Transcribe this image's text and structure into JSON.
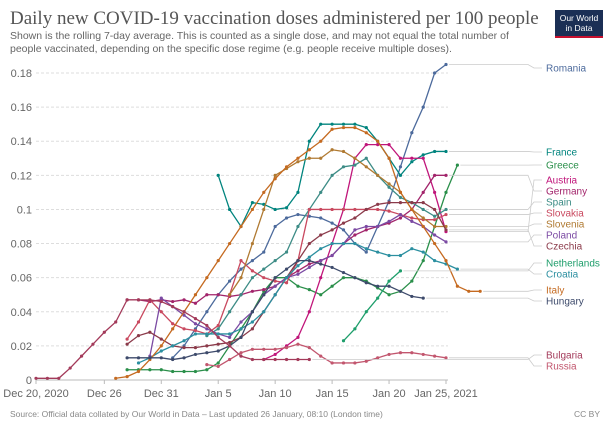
{
  "header": {
    "title": "Daily new COVID-19 vaccination doses administered per 100 people",
    "subtitle": "Shown is the rolling 7-day average. This is counted as a single dose, and may not equal the total number of people vaccinated, depending on the specific dose regime (e.g. people receive multiple doses).",
    "logo_line1": "Our World",
    "logo_line2": "in Data"
  },
  "footer": {
    "source": "Source: Official data collated by Our World in Data – Last updated 26 January, 08:10 (London time)",
    "license": "CC BY"
  },
  "chart_data": {
    "type": "line",
    "title": "Daily new COVID-19 vaccination doses administered per 100 people",
    "xlabel": "",
    "ylabel": "",
    "x_start": "2020-12-20",
    "x_end": "2021-01-25",
    "xticks": [
      {
        "day": 0,
        "label": "Dec 20, 2020"
      },
      {
        "day": 6,
        "label": "Dec 26"
      },
      {
        "day": 11,
        "label": "Dec 31"
      },
      {
        "day": 16,
        "label": "Jan 5"
      },
      {
        "day": 21,
        "label": "Jan 10"
      },
      {
        "day": 26,
        "label": "Jan 15"
      },
      {
        "day": 31,
        "label": "Jan 20"
      },
      {
        "day": 36,
        "label": "Jan 25, 2021"
      }
    ],
    "ylim": [
      0,
      0.18
    ],
    "yticks": [
      "0",
      "0.02",
      "0.04",
      "0.06",
      "0.08",
      "0.1",
      "0.12",
      "0.14",
      "0.16",
      "0.18"
    ],
    "grid": true,
    "legend": "right (line-end labels)",
    "series": [
      {
        "name": "Romania",
        "color": "#4c6a9c",
        "start_day": 12,
        "values": [
          0.013,
          0.02,
          0.03,
          0.04,
          0.05,
          0.058,
          0.065,
          0.07,
          0.075,
          0.09,
          0.095,
          0.097,
          0.096,
          0.095,
          0.092,
          0.088,
          0.08,
          0.075,
          0.09,
          0.105,
          0.125,
          0.145,
          0.16,
          0.18,
          0.185
        ]
      },
      {
        "name": "France",
        "color": "#00847e",
        "start_day": 16,
        "values": [
          0.12,
          0.1,
          0.09,
          0.104,
          0.103,
          0.1,
          0.101,
          0.11,
          0.14,
          0.15,
          0.15,
          0.15,
          0.15,
          0.148,
          0.14,
          0.13,
          0.12,
          0.128,
          0.132,
          0.134,
          0.134
        ]
      },
      {
        "name": "Greece",
        "color": "#2a8f4a",
        "start_day": 8,
        "values": [
          0.006,
          0.006,
          0.006,
          0.006,
          0.005,
          0.005,
          0.005,
          0.006,
          0.01,
          0.02,
          0.03,
          0.04,
          0.052,
          0.06,
          0.06,
          0.055,
          0.053,
          0.05,
          0.055,
          0.06,
          0.06,
          0.058,
          0.054,
          0.05,
          0.052,
          0.058,
          0.07,
          0.09,
          0.11,
          0.126
        ]
      },
      {
        "name": "Austria",
        "color": "#c0157a",
        "start_day": 20,
        "values": [
          0.012,
          0.015,
          0.02,
          0.025,
          0.04,
          0.06,
          0.08,
          0.1,
          0.13,
          0.138,
          0.138,
          0.138,
          0.13,
          0.13,
          0.13,
          0.11,
          0.087
        ]
      },
      {
        "name": "Germany",
        "color": "#a2246b",
        "start_day": 8,
        "values": [
          0.047,
          0.047,
          0.046,
          0.047,
          0.046,
          0.047,
          0.045,
          0.05,
          0.05,
          0.049,
          0.05,
          0.052,
          0.053,
          0.055,
          0.06,
          0.064,
          0.068,
          0.07,
          0.073,
          0.08,
          0.085,
          0.088,
          0.09,
          0.092,
          0.095,
          0.1,
          0.11,
          0.12,
          0.12
        ]
      },
      {
        "name": "Spain",
        "color": "#3d8c86",
        "start_day": 15,
        "values": [
          0.026,
          0.03,
          0.04,
          0.05,
          0.06,
          0.065,
          0.07,
          0.075,
          0.09,
          0.1,
          0.11,
          0.12,
          0.125,
          0.126,
          0.13,
          0.12,
          0.113,
          0.107,
          0.104,
          0.1,
          0.096,
          0.1
        ]
      },
      {
        "name": "Slovakia",
        "color": "#c9495f",
        "start_day": 8,
        "values": [
          0.024,
          0.034,
          0.047,
          0.04,
          0.033,
          0.03,
          0.029,
          0.027,
          0.032,
          0.05,
          0.07,
          0.064,
          0.06,
          0.058,
          0.057,
          0.07,
          0.1,
          0.1,
          0.1,
          0.1,
          0.1,
          0.1,
          0.1,
          0.099,
          0.097,
          0.095,
          0.094,
          0.094,
          0.097
        ]
      },
      {
        "name": "Slovenia",
        "color": "#b07a32",
        "start_day": 17,
        "values": [
          0.05,
          0.06,
          0.08,
          0.1,
          0.12,
          0.124,
          0.128,
          0.13,
          0.13,
          0.135,
          0.134,
          0.13,
          0.125,
          0.12,
          0.115,
          0.11,
          0.1,
          0.095,
          0.09,
          0.09
        ]
      },
      {
        "name": "Poland",
        "color": "#7b4aa3",
        "start_day": 10,
        "values": [
          0.014,
          0.048,
          0.043,
          0.038,
          0.033,
          0.03,
          0.027,
          0.025,
          0.034,
          0.04,
          0.05,
          0.055,
          0.06,
          0.062,
          0.066,
          0.07,
          0.073,
          0.08,
          0.088,
          0.09,
          0.09,
          0.093,
          0.097,
          0.093,
          0.09,
          0.085,
          0.081
        ]
      },
      {
        "name": "Czechia",
        "color": "#8b3a4a",
        "start_day": 8,
        "values": [
          0.021,
          0.026,
          0.028,
          0.024,
          0.02,
          0.019,
          0.019,
          0.02,
          0.021,
          0.022,
          0.025,
          0.03,
          0.04,
          0.05,
          0.06,
          0.07,
          0.08,
          0.085,
          0.088,
          0.092,
          0.095,
          0.1,
          0.103,
          0.104,
          0.104,
          0.104,
          0.104,
          0.1,
          0.088
        ]
      },
      {
        "name": "Netherlands",
        "color": "#1e9e6b",
        "start_day": 27,
        "values": [
          0.023,
          0.03,
          0.04,
          0.048,
          0.058,
          0.064
        ]
      },
      {
        "name": "Croatia",
        "color": "#2b8fa0",
        "start_day": 9,
        "values": [
          0.01,
          0.013,
          0.017,
          0.02,
          0.023,
          0.027,
          0.027,
          0.027,
          0.027,
          0.03,
          0.034,
          0.04,
          0.05,
          0.06,
          0.067,
          0.072,
          0.077,
          0.08,
          0.08,
          0.08,
          0.077,
          0.075,
          0.073,
          0.073,
          0.077,
          0.075,
          0.07,
          0.068,
          0.065
        ]
      },
      {
        "name": "Italy",
        "color": "#c56a20",
        "start_day": 7,
        "values": [
          0.001,
          0.002,
          0.005,
          0.012,
          0.02,
          0.03,
          0.04,
          0.05,
          0.06,
          0.07,
          0.08,
          0.09,
          0.1,
          0.11,
          0.118,
          0.125,
          0.13,
          0.135,
          0.14,
          0.147,
          0.148,
          0.148,
          0.145,
          0.14,
          0.13,
          0.11,
          0.1,
          0.09,
          0.08,
          0.07,
          0.055,
          0.052,
          0.052
        ]
      },
      {
        "name": "Hungary",
        "color": "#3d4a6b",
        "start_day": 8,
        "values": [
          0.013,
          0.013,
          0.013,
          0.013,
          0.012,
          0.013,
          0.015,
          0.016,
          0.017,
          0.02,
          0.025,
          0.04,
          0.05,
          0.06,
          0.065,
          0.07,
          0.07,
          0.068,
          0.066,
          0.063,
          0.06,
          0.057,
          0.055,
          0.055,
          0.052,
          0.049,
          0.048
        ]
      },
      {
        "name": "Bulgaria",
        "color": "#a33a5a",
        "start_day": 0,
        "values": [
          0.001,
          0.001,
          0.001,
          0.007,
          0.014,
          0.021,
          0.028,
          0.034,
          0.047,
          0.047,
          0.047,
          0.046,
          0.043,
          0.04,
          0.036,
          0.032,
          0.025,
          0.02,
          0.014,
          0.012,
          0.012,
          0.012,
          0.012,
          0.012,
          0.012
        ]
      },
      {
        "name": "Russia",
        "color": "#c2566e",
        "start_day": 15,
        "values": [
          0.009,
          0.008,
          0.012,
          0.016,
          0.018,
          0.018,
          0.018,
          0.019,
          0.021,
          0.019,
          0.014,
          0.01,
          0.01,
          0.01,
          0.011,
          0.013,
          0.015,
          0.016,
          0.016,
          0.015,
          0.014,
          0.013
        ]
      }
    ],
    "label_positions_note": "labels at right edge, ordered top to bottom"
  }
}
